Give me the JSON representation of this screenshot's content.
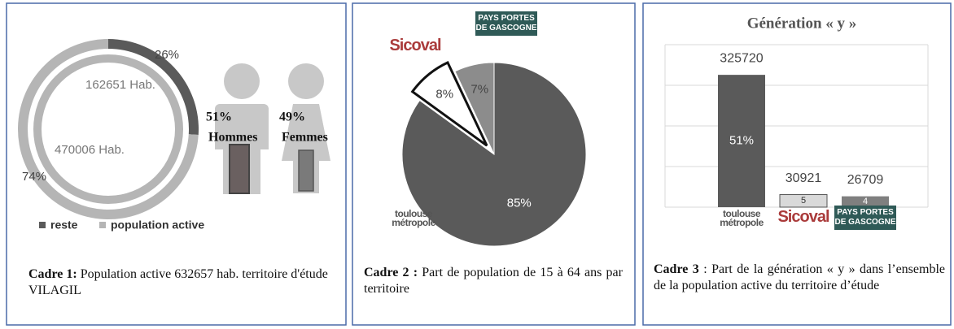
{
  "chart_data": [
    {
      "type": "donut",
      "categories": [
        "reste",
        "population active"
      ],
      "values": [
        26,
        74
      ],
      "value_labels": [
        "26%",
        "74%"
      ],
      "colors": [
        "#5a5a5a",
        "#b5b5b5"
      ],
      "annotations": [
        "162651 Hab.",
        "470006 Hab."
      ],
      "gender_labels": [
        {
          "share": "51%",
          "name": "Hommes"
        },
        {
          "share": "49%",
          "name": "Femmes"
        }
      ],
      "legend": true,
      "caption_label": "Cadre 1:",
      "caption": "Population active 632657 hab. territoire d'étude VILAGIL"
    },
    {
      "type": "pie",
      "categories": [
        "toulouse métropole",
        "Sicoval",
        "PAYS PORTES DE GASCOGNE"
      ],
      "values": [
        85,
        8,
        7
      ],
      "value_labels": [
        "85%",
        "8%",
        "7%"
      ],
      "colors": [
        "#5a5a5a",
        "#ffffff",
        "#8c8c8c"
      ],
      "explode": [
        false,
        true,
        false
      ],
      "caption_label": "Cadre 2 :",
      "caption": "Part de population de 15 à 64 ans par territoire"
    },
    {
      "type": "bar",
      "title": "Génération « y »",
      "categories": [
        "toulouse métropole",
        "Sicoval",
        "PAYS PORTES DE GASCOGNE"
      ],
      "values": [
        325720,
        30921,
        26709
      ],
      "shares": [
        51,
        5,
        4
      ],
      "share_labels": [
        "51%",
        "5",
        "4"
      ],
      "colors": [
        "#5a5a5a",
        "#d9d9d9",
        "#7f7f7f"
      ],
      "ylim": [
        0,
        400000
      ],
      "yticks": [
        0,
        100000,
        200000,
        300000,
        400000
      ],
      "grid": true,
      "caption_label": "Cadre 3",
      "caption": ": Part de la génération « y » dans l’ensemble de la population active du territoire d’étude"
    }
  ]
}
